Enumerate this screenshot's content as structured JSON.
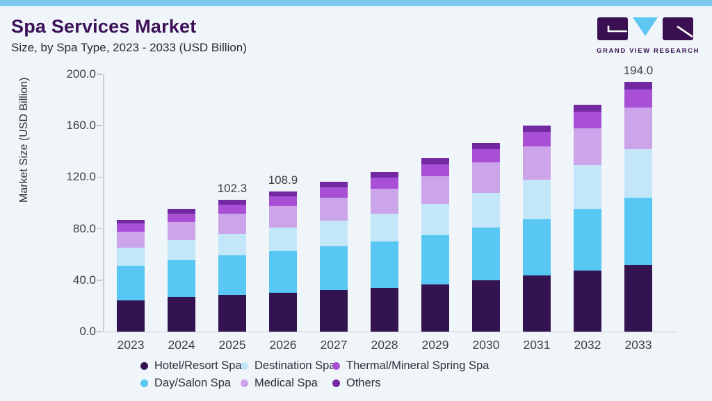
{
  "header": {
    "title": "Spa Services Market",
    "subtitle": "Size, by Spa Type, 2023 - 2033 (USD Billion)"
  },
  "logo": {
    "wordmark": "GRAND VIEW RESEARCH",
    "purple": "#3a1053",
    "blue": "#5ec8f2"
  },
  "theme": {
    "accent_bar_color": "#7cc9ef",
    "background_color": "#eff5f9",
    "axis_color": "#c9ced6",
    "text_color": "#3e4049",
    "title_color": "#3c1058"
  },
  "chart_data": {
    "type": "bar",
    "stacked": true,
    "title": "Spa Services Market",
    "subtitle": "Size, by Spa Type, 2023 - 2033 (USD Billion)",
    "xlabel": "",
    "ylabel": "Market Size (USD Billion)",
    "ylim": [
      0,
      200
    ],
    "y_ticks": [
      "0.0",
      "40.0",
      "80.0",
      "120.0",
      "160.0",
      "200.0"
    ],
    "grid": false,
    "legend_position": "bottom",
    "categories": [
      "2023",
      "2024",
      "2025",
      "2026",
      "2027",
      "2028",
      "2029",
      "2030",
      "2031",
      "2032",
      "2033"
    ],
    "series": [
      {
        "name": "Hotel/Resort Spa",
        "color": "#331450",
        "values": [
          24.5,
          26.7,
          28.6,
          30.3,
          32.1,
          34.1,
          36.8,
          39.9,
          43.4,
          47.5,
          52.0
        ]
      },
      {
        "name": "Day/Salon Spa",
        "color": "#58c7f3",
        "values": [
          26.9,
          29.1,
          30.8,
          32.3,
          34.0,
          35.8,
          38.3,
          41.1,
          44.2,
          47.9,
          52.0
        ]
      },
      {
        "name": "Destination Spa",
        "color": "#c3e7f9",
        "values": [
          13.7,
          15.3,
          16.8,
          18.4,
          20.1,
          21.9,
          24.3,
          27.0,
          30.2,
          33.9,
          38.0
        ]
      },
      {
        "name": "Medical Spa",
        "color": "#cba4ea",
        "values": [
          12.8,
          14.2,
          15.4,
          16.6,
          17.9,
          19.4,
          21.2,
          23.4,
          25.9,
          28.8,
          32.0
        ]
      },
      {
        "name": "Thermal/Mineral Spring Spa",
        "color": "#a84fd6",
        "values": [
          6.0,
          6.6,
          7.1,
          7.6,
          8.2,
          8.7,
          9.5,
          10.4,
          11.4,
          12.6,
          14.0
        ]
      },
      {
        "name": "Others",
        "color": "#7229a2",
        "values": [
          3.1,
          3.4,
          3.6,
          3.7,
          4.0,
          4.2,
          4.5,
          4.8,
          5.1,
          5.5,
          6.0
        ]
      }
    ],
    "totals": [
      87.0,
      95.3,
      102.3,
      108.9,
      116.3,
      124.1,
      134.6,
      146.6,
      160.2,
      176.2,
      194.0
    ],
    "annotations": {
      "2025": "102.3",
      "2026": "108.9",
      "2033": "194.0"
    }
  }
}
